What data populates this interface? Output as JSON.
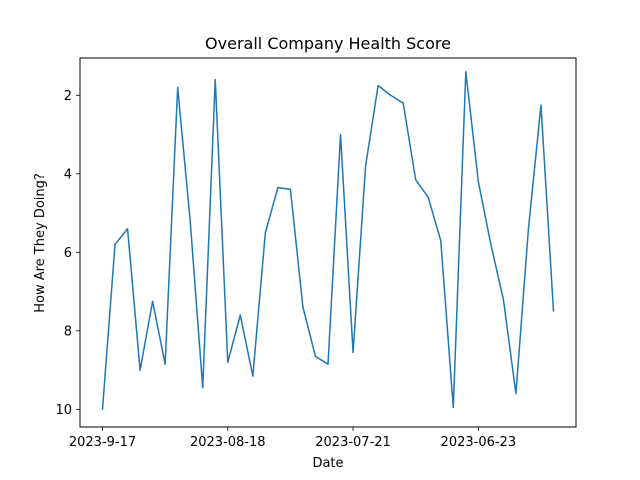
{
  "chart_data": {
    "type": "line",
    "title": "Overall Company Health Score",
    "xlabel": "Date",
    "ylabel": "How Are They Doing?",
    "x_tick_labels": [
      "2023-9-17",
      "2023-08-18",
      "2023-07-21",
      "2023-06-23"
    ],
    "y_ticks": [
      2,
      4,
      6,
      8,
      10
    ],
    "y_inverted": true,
    "ylim": [
      10.45,
      1.05
    ],
    "grid": false,
    "colors": {
      "line": "#1f77b4"
    },
    "series": [
      {
        "values": [
          10.0,
          5.8,
          5.4,
          9.0,
          7.25,
          8.85,
          1.8,
          5.2,
          9.45,
          1.6,
          8.8,
          7.6,
          9.15,
          5.5,
          4.35,
          4.4,
          7.4,
          8.65,
          8.85,
          3.0,
          8.55,
          3.8,
          1.75,
          2.0,
          2.2,
          4.15,
          4.6,
          5.7,
          9.95,
          1.4,
          4.2,
          5.8,
          7.2,
          9.6,
          5.4,
          2.25,
          7.5
        ]
      }
    ]
  }
}
